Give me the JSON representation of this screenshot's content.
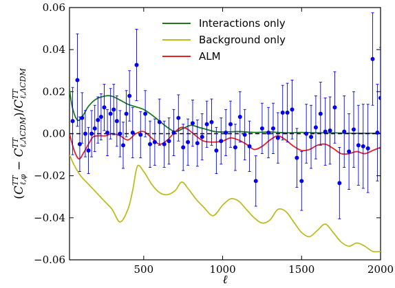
{
  "chart_data": {
    "type": "line",
    "xlabel": "ℓ",
    "ylabel": "(C^TT_ℓ,φ − C^TT_ℓ,ΛCDM)/C^TT_ℓ,ΛCDM",
    "xlim": [
      30,
      2000
    ],
    "ylim": [
      -0.06,
      0.06
    ],
    "x_ticks": [
      500,
      1000,
      1500,
      2000
    ],
    "y_ticks": [
      -0.06,
      -0.04,
      -0.02,
      0.0,
      0.02,
      0.04,
      0.06
    ],
    "y_tick_labels": [
      "−0.06",
      "−0.04",
      "−0.02",
      "0.00",
      "0.02",
      "0.04",
      "0.06"
    ],
    "grid": false,
    "legend_position": "top-center",
    "series": [
      {
        "name": "Interactions only",
        "color": "#1a7a1a",
        "x": [
          30,
          50,
          80,
          110,
          150,
          200,
          260,
          300,
          350,
          400,
          450,
          500,
          550,
          600,
          650,
          700,
          750,
          800,
          850,
          900,
          950,
          1000,
          1100,
          1200,
          1300,
          1400,
          1500,
          1600,
          1700,
          1800,
          1900,
          2000
        ],
        "y": [
          0.021,
          0.012,
          0.0065,
          0.008,
          0.013,
          0.0165,
          0.018,
          0.0178,
          0.016,
          0.014,
          0.0128,
          0.0115,
          0.009,
          0.006,
          0.003,
          0.001,
          0.0025,
          0.004,
          0.003,
          0.002,
          0.001,
          0.0008,
          0.001,
          0.0006,
          0.0008,
          0.0004,
          0.0006,
          0.0004,
          0.0004,
          0.0002,
          0.0002,
          0.0002
        ]
      },
      {
        "name": "Background only",
        "color": "#bcbd22",
        "x": [
          30,
          60,
          100,
          150,
          200,
          250,
          300,
          350,
          400,
          430,
          460,
          500,
          550,
          600,
          650,
          700,
          740,
          780,
          830,
          880,
          940,
          1000,
          1050,
          1100,
          1150,
          1200,
          1250,
          1300,
          1350,
          1400,
          1450,
          1500,
          1550,
          1600,
          1650,
          1700,
          1750,
          1800,
          1850,
          1900,
          1950,
          2000
        ],
        "y": [
          -0.01,
          -0.015,
          -0.02,
          -0.024,
          -0.028,
          -0.032,
          -0.036,
          -0.042,
          -0.036,
          -0.027,
          -0.0155,
          -0.018,
          -0.024,
          -0.028,
          -0.029,
          -0.027,
          -0.023,
          -0.026,
          -0.031,
          -0.035,
          -0.039,
          -0.034,
          -0.031,
          -0.032,
          -0.036,
          -0.04,
          -0.0425,
          -0.041,
          -0.036,
          -0.037,
          -0.042,
          -0.047,
          -0.049,
          -0.046,
          -0.043,
          -0.047,
          -0.0515,
          -0.0535,
          -0.052,
          -0.0535,
          -0.056,
          -0.056
        ]
      },
      {
        "name": "ALM",
        "color": "#e8201e",
        "x": [
          30,
          60,
          90,
          120,
          150,
          180,
          220,
          260,
          300,
          350,
          400,
          450,
          500,
          550,
          600,
          650,
          700,
          740,
          780,
          830,
          880,
          940,
          1000,
          1050,
          1100,
          1150,
          1200,
          1250,
          1300,
          1350,
          1400,
          1450,
          1500,
          1550,
          1600,
          1650,
          1700,
          1750,
          1800,
          1850,
          1900,
          1950,
          2000
        ],
        "y": [
          0.0,
          -0.008,
          -0.012,
          -0.009,
          -0.005,
          -0.0015,
          -0.001,
          -0.001,
          0.0,
          -0.001,
          -0.003,
          0.0,
          0.001,
          -0.002,
          -0.005,
          -0.003,
          0.001,
          0.003,
          0.002,
          -0.001,
          -0.0035,
          -0.004,
          -0.0035,
          -0.002,
          -0.003,
          -0.005,
          -0.0075,
          -0.006,
          -0.003,
          -0.001,
          -0.003,
          -0.006,
          -0.008,
          -0.0075,
          -0.0055,
          -0.005,
          -0.007,
          -0.0095,
          -0.0095,
          -0.0085,
          -0.0095,
          -0.008,
          -0.0065
        ]
      }
    ],
    "reference_line": {
      "y": 0,
      "style": "dashed",
      "color": "#000000"
    },
    "points": {
      "color": "#0000ee",
      "x": [
        50,
        80,
        95,
        110,
        130,
        150,
        170,
        190,
        210,
        230,
        250,
        270,
        290,
        310,
        330,
        350,
        370,
        390,
        410,
        430,
        455,
        480,
        510,
        540,
        570,
        600,
        630,
        660,
        690,
        720,
        750,
        780,
        810,
        840,
        870,
        900,
        930,
        960,
        990,
        1020,
        1050,
        1080,
        1110,
        1140,
        1170,
        1210,
        1250,
        1290,
        1320,
        1350,
        1380,
        1410,
        1440,
        1470,
        1500,
        1530,
        1560,
        1590,
        1620,
        1650,
        1680,
        1710,
        1740,
        1770,
        1800,
        1830,
        1860,
        1890,
        1920,
        1950,
        1980,
        2000
      ],
      "y": [
        0.006,
        0.0255,
        -0.005,
        0.0075,
        0.0,
        -0.008,
        0.0,
        0.0025,
        0.0065,
        0.008,
        0.0125,
        0.0005,
        0.0095,
        0.0115,
        0.006,
        0.0,
        -0.0055,
        0.0095,
        0.018,
        0.0005,
        0.0327,
        -0.0005,
        0.0095,
        -0.005,
        -0.004,
        0.0055,
        -0.005,
        -0.0035,
        0.0005,
        0.0075,
        -0.0065,
        -0.004,
        0.005,
        -0.0045,
        -0.0015,
        0.0045,
        0.0055,
        -0.008,
        -0.0035,
        0.0005,
        0.0045,
        -0.0065,
        0.008,
        -0.0005,
        -0.006,
        -0.0225,
        0.0025,
        0.0005,
        0.0025,
        -0.002,
        0.01,
        0.01,
        0.0115,
        -0.0115,
        -0.0225,
        0.0,
        -0.0015,
        0.003,
        0.0095,
        0.001,
        0.0015,
        0.0125,
        -0.0235,
        0.001,
        -0.0085,
        0.002,
        -0.0055,
        -0.006,
        -0.007,
        0.0355,
        0.0005,
        0.017
      ],
      "err": [
        0.016,
        0.022,
        0.013,
        0.012,
        0.011,
        0.011,
        0.011,
        0.011,
        0.011,
        0.011,
        0.011,
        0.011,
        0.012,
        0.012,
        0.012,
        0.011,
        0.011,
        0.011,
        0.012,
        0.012,
        0.017,
        0.011,
        0.011,
        0.011,
        0.011,
        0.011,
        0.011,
        0.011,
        0.011,
        0.011,
        0.011,
        0.011,
        0.011,
        0.011,
        0.011,
        0.011,
        0.011,
        0.011,
        0.011,
        0.011,
        0.011,
        0.011,
        0.012,
        0.012,
        0.012,
        0.012,
        0.012,
        0.012,
        0.012,
        0.012,
        0.013,
        0.014,
        0.014,
        0.014,
        0.014,
        0.014,
        0.015,
        0.015,
        0.015,
        0.016,
        0.016,
        0.017,
        0.017,
        0.017,
        0.018,
        0.018,
        0.019,
        0.02,
        0.021,
        0.022,
        0.023,
        0.024
      ]
    }
  }
}
